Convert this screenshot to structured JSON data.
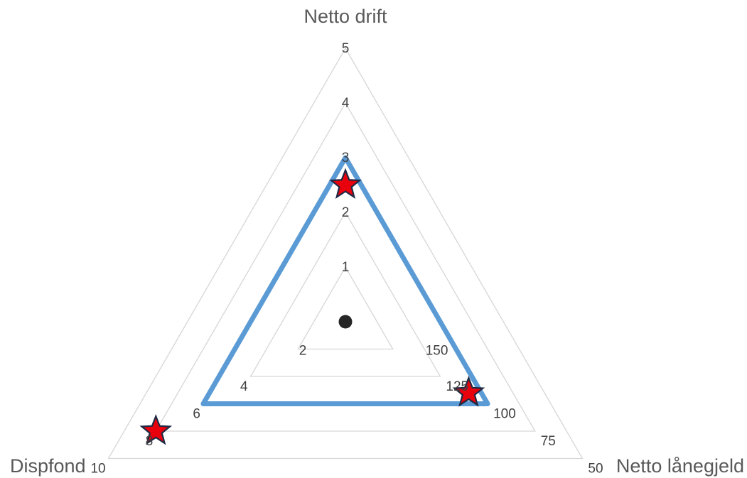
{
  "chart_data": {
    "type": "radar",
    "axes": [
      {
        "label": "Netto drift",
        "ticks": [
          "1",
          "2",
          "3",
          "4",
          "5"
        ]
      },
      {
        "label": "Netto lånegjeld",
        "ticks": [
          "150",
          "125",
          "100",
          "75",
          "50"
        ]
      },
      {
        "label": "Dispfond",
        "ticks": [
          "2",
          "4",
          "6",
          "8",
          "10"
        ]
      }
    ],
    "rings": 5,
    "grid": true,
    "legend": "none",
    "series": [
      {
        "style": "line",
        "color": "#5b9bd5",
        "values": [
          3.0,
          100,
          6.0
        ]
      },
      {
        "style": "star-markers",
        "color": "#e8000d",
        "edge_color": "#1f2a44",
        "values": [
          2.5,
          110,
          8.0
        ]
      }
    ],
    "center_marker_color": "#262626"
  }
}
